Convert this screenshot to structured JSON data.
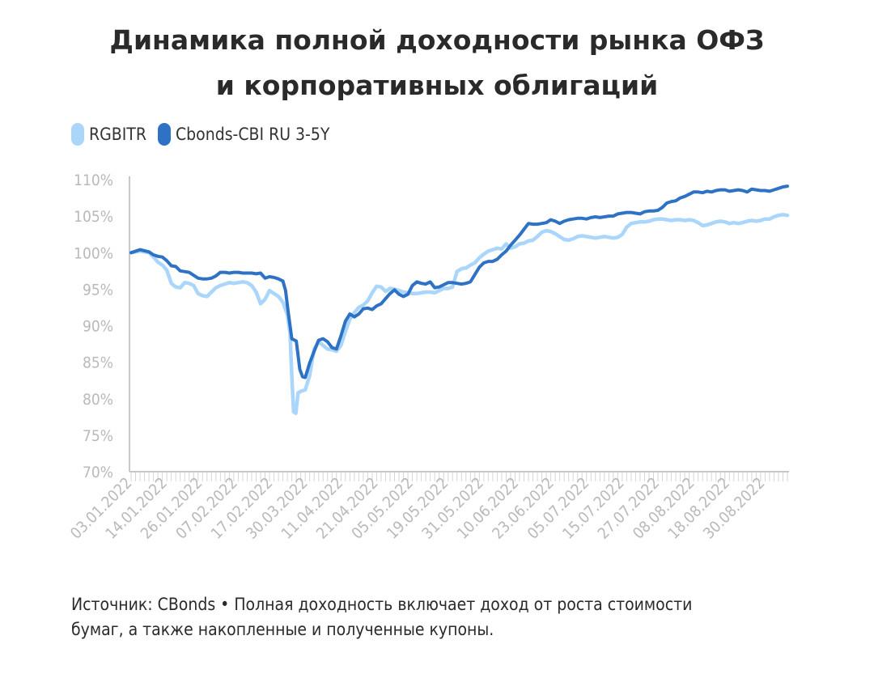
{
  "title_lines": [
    "Динамика полной доходности рынка ОФЗ",
    "и корпоративных облигаций"
  ],
  "legend": [
    {
      "label": "RGBITR",
      "color": "#aad6fb"
    },
    {
      "label": "Cbonds-CBI RU 3-5Y",
      "color": "#2e72c6"
    }
  ],
  "footer_lines": [
    "Источник: CBonds • Полная доходность включает доход от роста стоимости",
    "бумаг, а также накопленные и полученные купоны."
  ],
  "chart_data": {
    "type": "line",
    "ylim": [
      70,
      110
    ],
    "ytick_values": [
      70,
      75,
      80,
      85,
      90,
      95,
      100,
      105,
      110
    ],
    "ytick_labels": [
      "70%",
      "75%",
      "80%",
      "85%",
      "90%",
      "95%",
      "100%",
      "105%",
      "110%"
    ],
    "xtick_labels": [
      "03.01.2022",
      "14.01.2022",
      "26.01.2022",
      "07.02.2022",
      "17.02.2022",
      "30.03.2022",
      "11.04.2022",
      "21.04.2022",
      "05.05.2022",
      "19.05.2022",
      "31.05.2022",
      "10.06.2022",
      "23.06.2022",
      "05.07.2022",
      "15.07.2022",
      "27.07.2022",
      "08.08.2022",
      "18.08.2022",
      "30.08.2022"
    ],
    "grid": false,
    "legend_position": "top-left",
    "series": [
      {
        "name": "RGBITR",
        "color": "#aad6fb",
        "points": [
          [
            0,
            100.0
          ],
          [
            2,
            100.2
          ],
          [
            4,
            100.0
          ],
          [
            5,
            99.4
          ],
          [
            6,
            98.7
          ],
          [
            7,
            98.3
          ],
          [
            8,
            97.6
          ],
          [
            9,
            95.8
          ],
          [
            10,
            95.3
          ],
          [
            11,
            95.2
          ],
          [
            12,
            95.9
          ],
          [
            13,
            95.8
          ],
          [
            14,
            95.5
          ],
          [
            15,
            94.4
          ],
          [
            16,
            94.1
          ],
          [
            17,
            94.0
          ],
          [
            18,
            94.6
          ],
          [
            19,
            95.2
          ],
          [
            20,
            95.5
          ],
          [
            21,
            95.7
          ],
          [
            22,
            95.9
          ],
          [
            23,
            95.8
          ],
          [
            24,
            95.9
          ],
          [
            25,
            96.0
          ],
          [
            26,
            95.9
          ],
          [
            27,
            95.5
          ],
          [
            28,
            94.6
          ],
          [
            29,
            93.0
          ],
          [
            30,
            93.6
          ],
          [
            31,
            94.8
          ],
          [
            32,
            94.4
          ],
          [
            33,
            94.0
          ],
          [
            34,
            93.2
          ],
          [
            35,
            91.5
          ],
          [
            35.6,
            89.0
          ],
          [
            36.0,
            83.0
          ],
          [
            36.4,
            78.2
          ],
          [
            36.9,
            78.0
          ],
          [
            37.4,
            80.8
          ],
          [
            38,
            81.0
          ],
          [
            39,
            81.2
          ],
          [
            40,
            83.2
          ],
          [
            41,
            86.8
          ],
          [
            42,
            87.8
          ],
          [
            43,
            87.3
          ],
          [
            44,
            86.8
          ],
          [
            45,
            86.7
          ],
          [
            46,
            86.5
          ],
          [
            47,
            87.3
          ],
          [
            48,
            89.2
          ],
          [
            49,
            90.9
          ],
          [
            50,
            91.8
          ],
          [
            51,
            92.5
          ],
          [
            52,
            92.8
          ],
          [
            53,
            93.4
          ],
          [
            54,
            94.5
          ],
          [
            55,
            95.4
          ],
          [
            56,
            95.3
          ],
          [
            57,
            94.7
          ],
          [
            58,
            95.1
          ],
          [
            59,
            95.0
          ],
          [
            60,
            94.8
          ],
          [
            61,
            94.6
          ],
          [
            62,
            94.5
          ],
          [
            63,
            94.4
          ],
          [
            64,
            94.4
          ],
          [
            65,
            94.5
          ],
          [
            66,
            94.6
          ],
          [
            67,
            94.6
          ],
          [
            68,
            94.5
          ],
          [
            69,
            94.8
          ],
          [
            70,
            95.1
          ],
          [
            71,
            95.1
          ],
          [
            72,
            95.3
          ],
          [
            73,
            97.4
          ],
          [
            74,
            97.8
          ],
          [
            75,
            97.9
          ],
          [
            76,
            98.3
          ],
          [
            77,
            98.6
          ],
          [
            78,
            99.3
          ],
          [
            79,
            99.8
          ],
          [
            80,
            100.2
          ],
          [
            81,
            100.4
          ],
          [
            82,
            100.6
          ],
          [
            83,
            100.5
          ],
          [
            84,
            101.2
          ],
          [
            85,
            100.6
          ],
          [
            86,
            100.8
          ],
          [
            87,
            101.2
          ],
          [
            88,
            101.3
          ],
          [
            89,
            101.6
          ],
          [
            90,
            101.7
          ],
          [
            91,
            102.2
          ],
          [
            92,
            102.8
          ],
          [
            93,
            103.0
          ],
          [
            94,
            102.9
          ],
          [
            95,
            102.6
          ],
          [
            96,
            102.2
          ],
          [
            97,
            101.8
          ],
          [
            98,
            101.7
          ],
          [
            99,
            101.9
          ],
          [
            100,
            102.2
          ],
          [
            101,
            102.3
          ],
          [
            102,
            102.2
          ],
          [
            103,
            102.1
          ],
          [
            104,
            102.0
          ],
          [
            105,
            102.1
          ],
          [
            106,
            102.2
          ],
          [
            107,
            102.1
          ],
          [
            108,
            102.0
          ],
          [
            109,
            102.1
          ],
          [
            110,
            102.5
          ],
          [
            111,
            103.5
          ],
          [
            112,
            104.0
          ],
          [
            113,
            104.1
          ],
          [
            114,
            104.2
          ],
          [
            115,
            104.2
          ],
          [
            116,
            104.3
          ],
          [
            117,
            104.5
          ],
          [
            118,
            104.6
          ],
          [
            119,
            104.6
          ],
          [
            120,
            104.5
          ],
          [
            121,
            104.4
          ],
          [
            122,
            104.5
          ],
          [
            123,
            104.5
          ],
          [
            124,
            104.4
          ],
          [
            125,
            104.5
          ],
          [
            126,
            104.4
          ],
          [
            127,
            104.1
          ],
          [
            128,
            103.7
          ],
          [
            129,
            103.8
          ],
          [
            130,
            104.0
          ],
          [
            131,
            104.2
          ],
          [
            132,
            104.3
          ],
          [
            133,
            104.2
          ],
          [
            134,
            104.0
          ],
          [
            135,
            104.1
          ],
          [
            136,
            104.0
          ],
          [
            137,
            104.1
          ],
          [
            138,
            104.3
          ],
          [
            139,
            104.4
          ],
          [
            140,
            104.3
          ],
          [
            141,
            104.4
          ],
          [
            142,
            104.6
          ],
          [
            143,
            104.6
          ],
          [
            144,
            104.9
          ],
          [
            145,
            105.1
          ],
          [
            146,
            105.2
          ],
          [
            147,
            105.1
          ]
        ]
      },
      {
        "name": "Cbonds-CBI RU 3-5Y",
        "color": "#2e72c6",
        "points": [
          [
            0,
            100.0
          ],
          [
            2,
            100.4
          ],
          [
            4,
            100.1
          ],
          [
            5,
            99.7
          ],
          [
            6,
            99.5
          ],
          [
            7,
            99.4
          ],
          [
            8,
            98.9
          ],
          [
            9,
            98.2
          ],
          [
            10,
            98.1
          ],
          [
            11,
            97.5
          ],
          [
            12,
            97.4
          ],
          [
            13,
            97.3
          ],
          [
            14,
            96.9
          ],
          [
            15,
            96.5
          ],
          [
            16,
            96.4
          ],
          [
            17,
            96.4
          ],
          [
            18,
            96.5
          ],
          [
            19,
            96.8
          ],
          [
            20,
            97.3
          ],
          [
            21,
            97.3
          ],
          [
            22,
            97.2
          ],
          [
            23,
            97.3
          ],
          [
            24,
            97.3
          ],
          [
            25,
            97.2
          ],
          [
            26,
            97.2
          ],
          [
            27,
            97.2
          ],
          [
            28,
            97.1
          ],
          [
            29,
            97.2
          ],
          [
            30,
            96.5
          ],
          [
            31,
            96.7
          ],
          [
            32,
            96.6
          ],
          [
            33,
            96.4
          ],
          [
            34,
            96.1
          ],
          [
            34.6,
            94.8
          ],
          [
            35.2,
            91.8
          ],
          [
            36.0,
            88.2
          ],
          [
            37.0,
            87.9
          ],
          [
            37.8,
            84.0
          ],
          [
            38.4,
            83.0
          ],
          [
            39,
            82.9
          ],
          [
            40,
            84.9
          ],
          [
            41,
            86.5
          ],
          [
            42,
            88.0
          ],
          [
            43,
            88.2
          ],
          [
            44,
            87.8
          ],
          [
            45,
            87.0
          ],
          [
            46,
            86.8
          ],
          [
            47,
            88.6
          ],
          [
            48,
            90.6
          ],
          [
            49,
            91.6
          ],
          [
            50,
            91.2
          ],
          [
            51,
            91.6
          ],
          [
            52,
            92.3
          ],
          [
            53,
            92.4
          ],
          [
            54,
            92.2
          ],
          [
            55,
            92.7
          ],
          [
            56,
            93.0
          ],
          [
            57,
            93.7
          ],
          [
            58,
            94.4
          ],
          [
            59,
            94.9
          ],
          [
            60,
            94.3
          ],
          [
            61,
            94.0
          ],
          [
            62,
            94.3
          ],
          [
            63,
            95.5
          ],
          [
            64,
            96.0
          ],
          [
            65,
            95.8
          ],
          [
            66,
            95.7
          ],
          [
            67,
            96.0
          ],
          [
            68,
            95.2
          ],
          [
            69,
            95.3
          ],
          [
            70,
            95.6
          ],
          [
            71,
            95.9
          ],
          [
            72,
            95.9
          ],
          [
            73,
            95.8
          ],
          [
            74,
            95.7
          ],
          [
            75,
            95.8
          ],
          [
            76,
            96.0
          ],
          [
            77,
            97.0
          ],
          [
            78,
            98.0
          ],
          [
            79,
            98.6
          ],
          [
            80,
            98.8
          ],
          [
            81,
            98.8
          ],
          [
            82,
            99.1
          ],
          [
            83,
            99.7
          ],
          [
            84,
            100.2
          ],
          [
            85,
            101.0
          ],
          [
            86,
            101.7
          ],
          [
            87,
            102.4
          ],
          [
            88,
            103.2
          ],
          [
            89,
            104.0
          ],
          [
            90,
            103.9
          ],
          [
            91,
            103.9
          ],
          [
            92,
            104.0
          ],
          [
            93,
            104.1
          ],
          [
            94,
            104.5
          ],
          [
            95,
            104.3
          ],
          [
            96,
            104.0
          ],
          [
            97,
            104.3
          ],
          [
            98,
            104.5
          ],
          [
            99,
            104.6
          ],
          [
            100,
            104.7
          ],
          [
            101,
            104.7
          ],
          [
            102,
            104.6
          ],
          [
            103,
            104.8
          ],
          [
            104,
            104.9
          ],
          [
            105,
            104.8
          ],
          [
            106,
            104.9
          ],
          [
            107,
            105.0
          ],
          [
            108,
            105.0
          ],
          [
            109,
            105.3
          ],
          [
            110,
            105.4
          ],
          [
            111,
            105.5
          ],
          [
            112,
            105.5
          ],
          [
            113,
            105.4
          ],
          [
            114,
            105.3
          ],
          [
            115,
            105.6
          ],
          [
            116,
            105.7
          ],
          [
            117,
            105.7
          ],
          [
            118,
            105.8
          ],
          [
            119,
            106.2
          ],
          [
            120,
            106.8
          ],
          [
            121,
            107.0
          ],
          [
            122,
            107.1
          ],
          [
            123,
            107.5
          ],
          [
            124,
            107.7
          ],
          [
            125,
            108.0
          ],
          [
            126,
            108.3
          ],
          [
            127,
            108.3
          ],
          [
            128,
            108.2
          ],
          [
            129,
            108.4
          ],
          [
            130,
            108.3
          ],
          [
            131,
            108.5
          ],
          [
            132,
            108.6
          ],
          [
            133,
            108.6
          ],
          [
            134,
            108.4
          ],
          [
            135,
            108.5
          ],
          [
            136,
            108.6
          ],
          [
            137,
            108.5
          ],
          [
            138,
            108.3
          ],
          [
            139,
            108.7
          ],
          [
            140,
            108.6
          ],
          [
            141,
            108.5
          ],
          [
            142,
            108.5
          ],
          [
            143,
            108.4
          ],
          [
            144,
            108.6
          ],
          [
            145,
            108.8
          ],
          [
            146,
            109.0
          ],
          [
            147,
            109.1
          ]
        ]
      }
    ]
  }
}
